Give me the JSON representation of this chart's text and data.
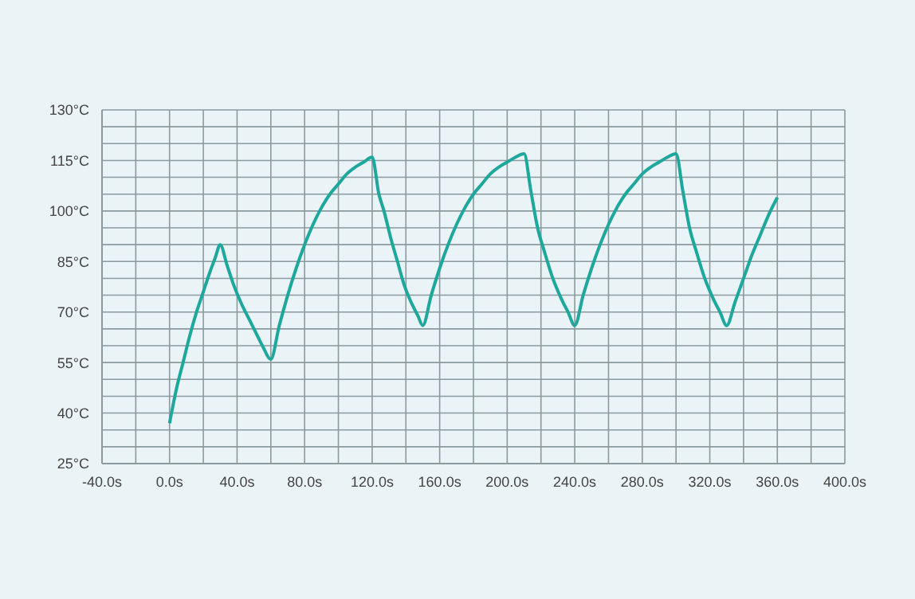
{
  "chart_data": {
    "type": "line",
    "x": [
      0,
      4,
      8,
      12,
      16,
      20,
      24,
      27,
      30,
      34,
      38,
      43,
      47,
      51,
      55,
      60,
      65,
      70,
      75,
      80,
      85,
      90,
      95,
      100,
      105,
      110,
      115,
      120,
      124,
      127,
      131,
      135,
      139,
      143,
      147,
      150,
      155,
      160,
      165,
      170,
      175,
      180,
      185,
      190,
      195,
      200,
      205,
      210,
      214,
      218,
      222,
      227,
      232,
      236,
      240,
      245,
      250,
      255,
      260,
      265,
      270,
      275,
      280,
      285,
      290,
      295,
      300,
      304,
      308,
      312,
      317,
      322,
      326,
      330,
      335,
      340,
      345,
      350,
      355,
      360
    ],
    "series": [
      {
        "color": "#1ea79c",
        "values": [
          37,
          47,
          55,
          63,
          70,
          76,
          82,
          86,
          90,
          84,
          78,
          72,
          68,
          64,
          60,
          56,
          66,
          75,
          83,
          90,
          96,
          101,
          105,
          108,
          111,
          113,
          114.5,
          116,
          105,
          100,
          92,
          85,
          78,
          73,
          69,
          66,
          75,
          83,
          90,
          96,
          101,
          105,
          108,
          111,
          113,
          114.5,
          116,
          117,
          106,
          95,
          88,
          80,
          74,
          70,
          66,
          75,
          83,
          90,
          96,
          101,
          105,
          108,
          111,
          113,
          114.5,
          116,
          117,
          106,
          95,
          88,
          80,
          74,
          70,
          66,
          73,
          80,
          87,
          93,
          99,
          104
        ]
      }
    ],
    "xlim": [
      -40,
      400
    ],
    "xticks": [
      {
        "value": -40,
        "label": "-40.0s"
      },
      {
        "value": -20,
        "label": null
      },
      {
        "value": 0,
        "label": "0.0s"
      },
      {
        "value": 20,
        "label": null
      },
      {
        "value": 40,
        "label": "40.0s"
      },
      {
        "value": 60,
        "label": null
      },
      {
        "value": 80,
        "label": "80.0s"
      },
      {
        "value": 100,
        "label": null
      },
      {
        "value": 120,
        "label": "120.0s"
      },
      {
        "value": 140,
        "label": null
      },
      {
        "value": 160,
        "label": "160.0s"
      },
      {
        "value": 180,
        "label": null
      },
      {
        "value": 200,
        "label": "200.0s"
      },
      {
        "value": 220,
        "label": null
      },
      {
        "value": 240,
        "label": "240.0s"
      },
      {
        "value": 260,
        "label": null
      },
      {
        "value": 280,
        "label": "280.0s"
      },
      {
        "value": 300,
        "label": null
      },
      {
        "value": 320,
        "label": "320.0s"
      },
      {
        "value": 340,
        "label": null
      },
      {
        "value": 360,
        "label": "360.0s"
      },
      {
        "value": 380,
        "label": null
      },
      {
        "value": 400,
        "label": "400.0s"
      }
    ],
    "ylim": [
      25,
      130
    ],
    "yticks": [
      {
        "value": 25,
        "label": "25°C"
      },
      {
        "value": 30,
        "label": null
      },
      {
        "value": 35,
        "label": null
      },
      {
        "value": 40,
        "label": "40°C"
      },
      {
        "value": 45,
        "label": null
      },
      {
        "value": 50,
        "label": null
      },
      {
        "value": 55,
        "label": "55°C"
      },
      {
        "value": 60,
        "label": null
      },
      {
        "value": 65,
        "label": null
      },
      {
        "value": 70,
        "label": "70°C"
      },
      {
        "value": 75,
        "label": null
      },
      {
        "value": 80,
        "label": null
      },
      {
        "value": 85,
        "label": "85°C"
      },
      {
        "value": 90,
        "label": null
      },
      {
        "value": 95,
        "label": null
      },
      {
        "value": 100,
        "label": "100°C"
      },
      {
        "value": 105,
        "label": null
      },
      {
        "value": 110,
        "label": null
      },
      {
        "value": 115,
        "label": "115°C"
      },
      {
        "value": 120,
        "label": null
      },
      {
        "value": 125,
        "label": null
      },
      {
        "value": 130,
        "label": "130°C"
      }
    ],
    "grid": true,
    "marker": "none",
    "line_style": "solid"
  }
}
